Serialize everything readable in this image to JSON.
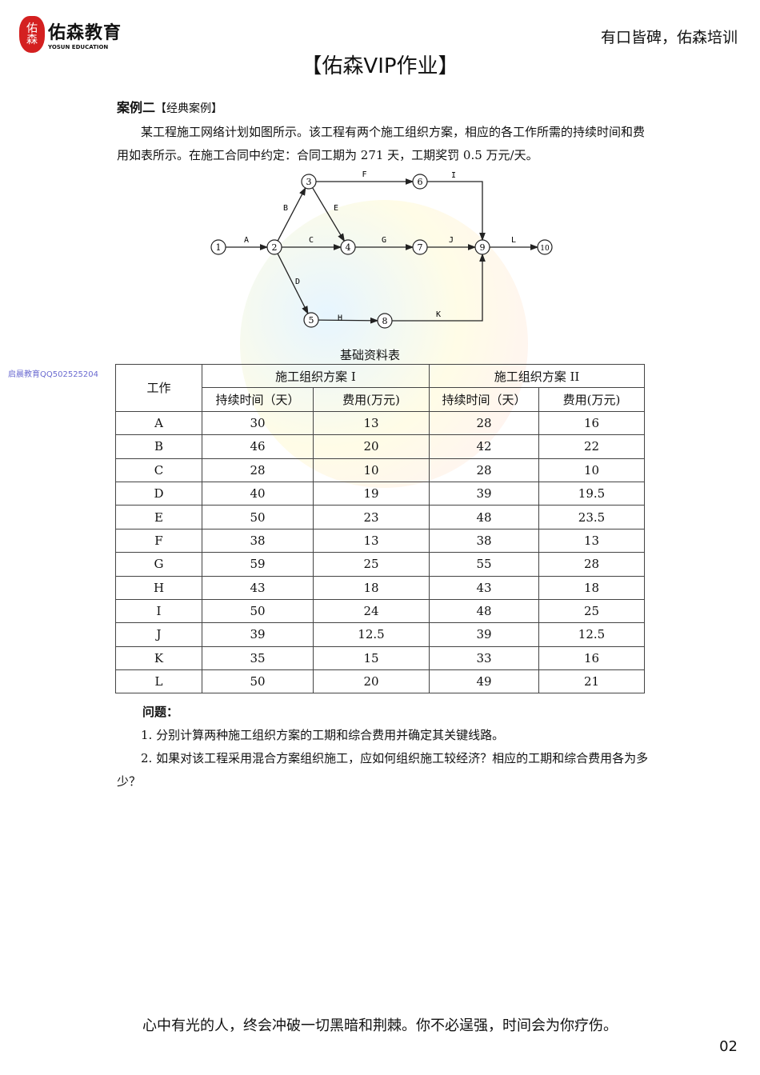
{
  "header": {
    "logo_cn": "佑森教育",
    "logo_en": "YOSUN EDUCATION",
    "logo_mark": "佑森",
    "slogan": "有口皆碑，佑森培训",
    "title": "【佑森VIP作业】"
  },
  "case": {
    "heading": "案例二",
    "tag": "【经典案例】",
    "paragraph": "某工程施工网络计划如图所示。该工程有两个施工组织方案，相应的各工作所需的持续时间和费用如表所示。在施工合同中约定：合同工期为 271 天，工期奖罚 0.5 万元/天。"
  },
  "side_text": "启晨教育QQ502525204",
  "network": {
    "nodes": [
      "1",
      "2",
      "3",
      "4",
      "5",
      "6",
      "7",
      "8",
      "9",
      "10"
    ],
    "edges": [
      {
        "label": "A",
        "from": "1",
        "to": "2"
      },
      {
        "label": "B",
        "from": "2",
        "to": "3"
      },
      {
        "label": "C",
        "from": "2",
        "to": "4"
      },
      {
        "label": "D",
        "from": "2",
        "to": "5"
      },
      {
        "label": "E",
        "from": "3",
        "to": "4"
      },
      {
        "label": "F",
        "from": "3",
        "to": "6"
      },
      {
        "label": "G",
        "from": "4",
        "to": "7"
      },
      {
        "label": "H",
        "from": "5",
        "to": "8"
      },
      {
        "label": "I",
        "from": "6",
        "to": "9"
      },
      {
        "label": "J",
        "from": "7",
        "to": "9"
      },
      {
        "label": "K",
        "from": "8",
        "to": "9"
      },
      {
        "label": "L",
        "from": "9",
        "to": "10"
      }
    ]
  },
  "table": {
    "caption": "基础资料表",
    "work_header": "工作",
    "plan1": "施工组织方案 I",
    "plan2": "施工组织方案 II",
    "duration": "持续时间（天）",
    "cost": "费用(万元)",
    "rows": [
      [
        "A",
        "30",
        "13",
        "28",
        "16"
      ],
      [
        "B",
        "46",
        "20",
        "42",
        "22"
      ],
      [
        "C",
        "28",
        "10",
        "28",
        "10"
      ],
      [
        "D",
        "40",
        "19",
        "39",
        "19.5"
      ],
      [
        "E",
        "50",
        "23",
        "48",
        "23.5"
      ],
      [
        "F",
        "38",
        "13",
        "38",
        "13"
      ],
      [
        "G",
        "59",
        "25",
        "55",
        "28"
      ],
      [
        "H",
        "43",
        "18",
        "43",
        "18"
      ],
      [
        "I",
        "50",
        "24",
        "48",
        "25"
      ],
      [
        "J",
        "39",
        "12.5",
        "39",
        "12.5"
      ],
      [
        "K",
        "35",
        "15",
        "33",
        "16"
      ],
      [
        "L",
        "50",
        "20",
        "49",
        "21"
      ]
    ]
  },
  "questions": {
    "heading": "问题：",
    "q1": "1. 分别计算两种施工组织方案的工期和综合费用并确定其关键线路。",
    "q2": "2. 如果对该工程采用混合方案组织施工，应如何组织施工较经济？相应的工期和综合费用各为多少？"
  },
  "footer": {
    "quote": "心中有光的人，终会冲破一切黑暗和荆棘。你不必逞强，时间会为你疗伤。",
    "page": "02"
  }
}
